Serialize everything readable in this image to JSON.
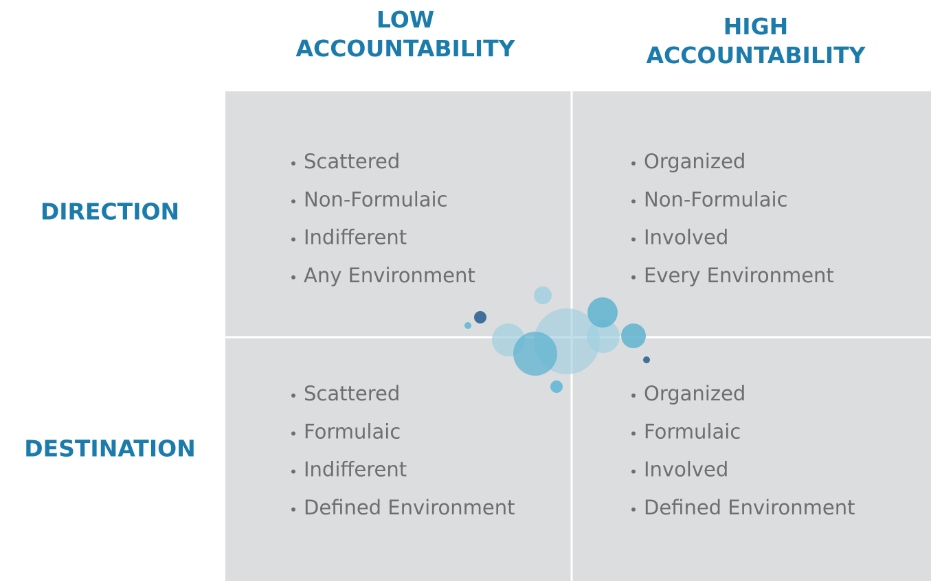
{
  "columns": [
    {
      "lines": [
        "LOW",
        "ACCOUNTABILITY"
      ]
    },
    {
      "lines": [
        "HIGH",
        "ACCOUNTABILITY"
      ]
    }
  ],
  "rows": [
    "DIRECTION",
    "DESTINATION"
  ],
  "cells": [
    [
      [
        "Scattered",
        "Non-Formulaic",
        "Indifferent",
        "Any Environment"
      ],
      [
        "Organized",
        "Non-Formulaic",
        "Involved",
        "Every Environment"
      ]
    ],
    [
      [
        "Scattered",
        "Formulaic",
        "Indifferent",
        "Defined Environment"
      ],
      [
        "Organized",
        "Formulaic",
        "Involved",
        "Defined Environment"
      ]
    ]
  ]
}
